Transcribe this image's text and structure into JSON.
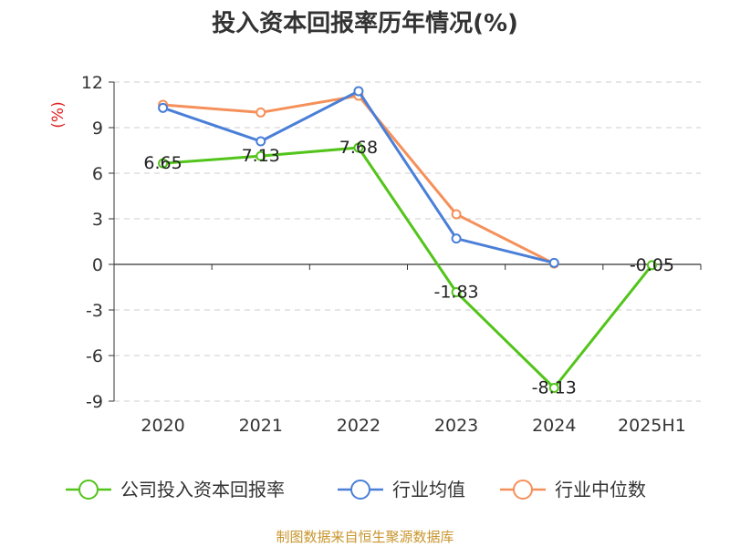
{
  "chart_data": {
    "type": "line",
    "title": "投入资本回报率历年情况(%)",
    "ylabel": "(%)",
    "xlabel": "",
    "categories": [
      "2020",
      "2021",
      "2022",
      "2023",
      "2024",
      "2025H1"
    ],
    "ylim": [
      -9,
      12
    ],
    "yticks": [
      12,
      9,
      6,
      3,
      0,
      -3,
      -6,
      -9
    ],
    "grid": true,
    "legend_position": "bottom",
    "series": [
      {
        "name": "公司投入资本回报率",
        "color": "#52c41a",
        "values": [
          6.65,
          7.13,
          7.68,
          -1.83,
          -8.13,
          -0.05
        ],
        "labels": [
          "6.65",
          "7.13",
          "7.68",
          "-1.83",
          "-8.13",
          "-0.05"
        ]
      },
      {
        "name": "行业均值",
        "color": "#4a7fd8",
        "values": [
          10.3,
          8.1,
          11.4,
          1.7,
          0.1,
          null
        ]
      },
      {
        "name": "行业中位数",
        "color": "#f5905a",
        "values": [
          10.5,
          10.0,
          11.1,
          3.3,
          0.05,
          null
        ]
      }
    ]
  },
  "footer": {
    "source": "制图数据来自恒生聚源数据库"
  }
}
